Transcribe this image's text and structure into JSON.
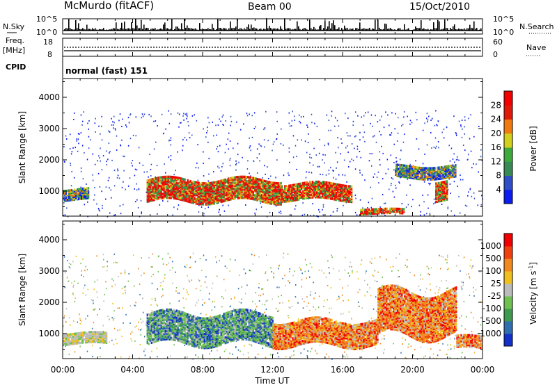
{
  "header": {
    "site": "McMurdo (fitACF)",
    "beam": "Beam 00",
    "date": "15/Oct/2010"
  },
  "top_panels": {
    "nsky_label": "N.Sky",
    "nsky_ticks": [
      "10^5",
      "10^0"
    ],
    "nsearch_label": "N.Search",
    "nsearch_ticks": [
      "10^5",
      "10^0"
    ],
    "freq_label_1": "Freq.",
    "freq_label_2": "[MHz]",
    "freq_ticks": [
      "18",
      "8"
    ],
    "nave_label": "Nave",
    "nave_ticks": [
      "60",
      "0"
    ],
    "cpid_label": "CPID",
    "cpid_value": "normal (fast) 151"
  },
  "chart_data": [
    {
      "type": "heatmap",
      "name": "power-panel",
      "ylabel": "Slant Range [km]",
      "yticks": [
        "1000",
        "2000",
        "3000",
        "4000"
      ],
      "ylim": [
        200,
        4600
      ],
      "colorbar": {
        "label": "Power [dB]",
        "ticks": [
          "4",
          "8",
          "12",
          "16",
          "20",
          "24",
          "28"
        ],
        "colors": [
          "#0b1cf0",
          "#2f4fc8",
          "#3a8a55",
          "#3faa3c",
          "#d2d01c",
          "#f07a10",
          "#e01a0a",
          "#f20000"
        ]
      },
      "bands": [
        {
          "range_km": [
            700,
            1050
          ],
          "x_hours": [
            0.0,
            1.5
          ],
          "level": "medium"
        },
        {
          "range_km": [
            650,
            1350
          ],
          "x_hours": [
            4.8,
            12.5
          ],
          "level": "high"
        },
        {
          "range_km": [
            700,
            1200
          ],
          "x_hours": [
            12.5,
            16.5
          ],
          "level": "high"
        },
        {
          "range_km": [
            250,
            400
          ],
          "x_hours": [
            17.0,
            19.5
          ],
          "level": "high"
        },
        {
          "range_km": [
            1400,
            1800
          ],
          "x_hours": [
            19.0,
            22.5
          ],
          "level": "medium"
        },
        {
          "range_km": [
            700,
            1300
          ],
          "x_hours": [
            21.3,
            22.0
          ],
          "level": "high"
        }
      ]
    },
    {
      "type": "heatmap",
      "name": "velocity-panel",
      "ylabel": "Slant Range [km]",
      "yticks": [
        "1000",
        "2000",
        "3000",
        "4000"
      ],
      "ylim": [
        200,
        4600
      ],
      "colorbar": {
        "label": "Velocity [m s",
        "label_sup": "-1",
        "label_end": "]",
        "ticks": [
          "1000",
          "500",
          "100",
          "25",
          "-25",
          "-100",
          "-500",
          "-1000"
        ],
        "colors": [
          "#1230c8",
          "#2f6fb0",
          "#3f9a50",
          "#6fc050",
          "#bcbcbc",
          "#f0c020",
          "#f08a20",
          "#f04010",
          "#f00000"
        ]
      },
      "bands": [
        {
          "range_km": [
            650,
            1000
          ],
          "x_hours": [
            0.0,
            2.5
          ],
          "level": "grey"
        },
        {
          "range_km": [
            650,
            1600
          ],
          "x_hours": [
            4.8,
            12.0
          ],
          "level": "green"
        },
        {
          "range_km": [
            600,
            1400
          ],
          "x_hours": [
            12.0,
            18.0
          ],
          "level": "orange"
        },
        {
          "range_km": [
            900,
            2300
          ],
          "x_hours": [
            18.0,
            22.5
          ],
          "level": "orange"
        },
        {
          "range_km": [
            500,
            900
          ],
          "x_hours": [
            22.5,
            24.0
          ],
          "level": "orange"
        }
      ]
    }
  ],
  "x_axis": {
    "ticks": [
      "00:00",
      "04:00",
      "08:00",
      "12:00",
      "16:00",
      "20:00",
      "00:00"
    ],
    "label": "Time UT",
    "xlim_hours": [
      0,
      24
    ]
  }
}
